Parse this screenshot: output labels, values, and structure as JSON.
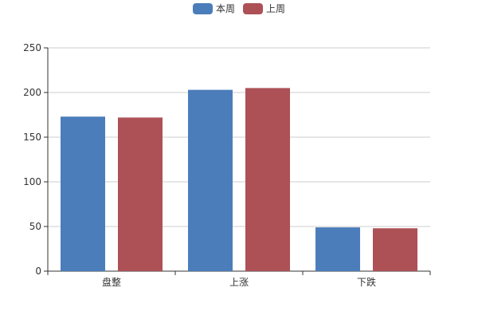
{
  "chart_data": {
    "type": "bar",
    "categories": [
      "盘整",
      "上涨",
      "下跌"
    ],
    "series": [
      {
        "name": "本周",
        "color": "#4b7dbb",
        "values": [
          173,
          203,
          49
        ]
      },
      {
        "name": "上周",
        "color": "#ad5157",
        "values": [
          172,
          205,
          48
        ]
      }
    ],
    "ylim": [
      0,
      250
    ],
    "yticks": [
      0,
      50,
      100,
      150,
      200,
      250
    ],
    "grid": true,
    "legend": "top-center"
  }
}
